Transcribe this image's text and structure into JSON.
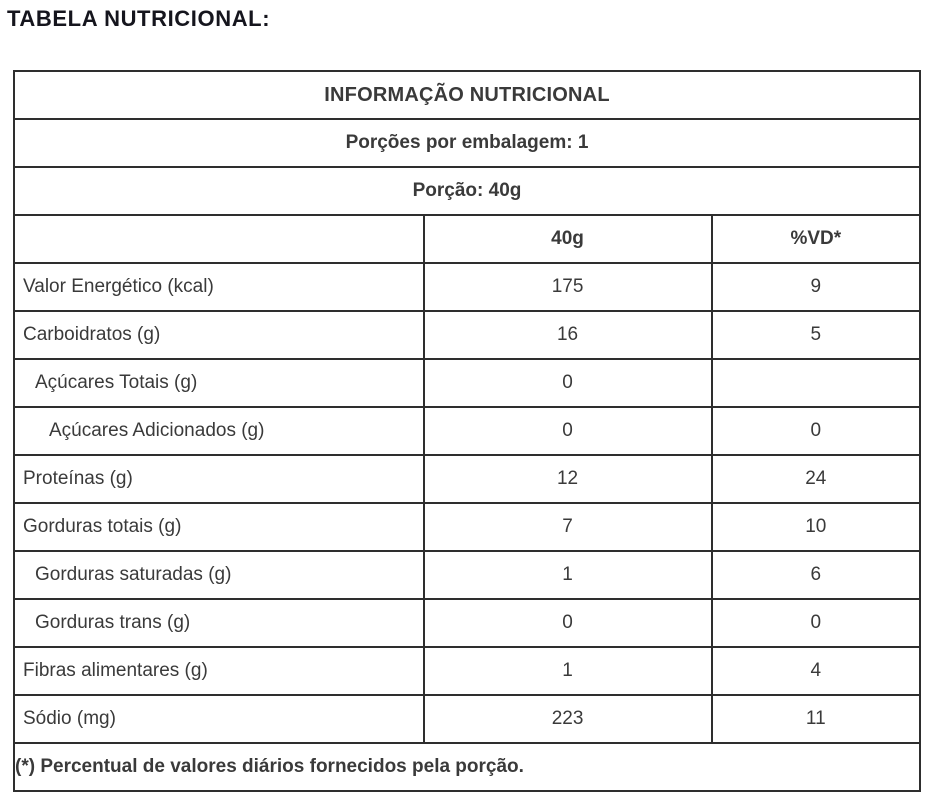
{
  "page_title": "TABELA NUTRICIONAL:",
  "table": {
    "title": "INFORMAÇÃO NUTRICIONAL",
    "servings_line": "Porções por embalagem: 1",
    "portion_line": "Porção: 40g",
    "columns": {
      "label": "",
      "amount": "40g",
      "dv": "%VD*"
    },
    "rows": [
      {
        "label": "Valor Energético (kcal)",
        "amount": "175",
        "dv": "9",
        "indent": 0
      },
      {
        "label": "Carboidratos (g)",
        "amount": "16",
        "dv": "5",
        "indent": 0
      },
      {
        "label": "Açúcares Totais (g)",
        "amount": "0",
        "dv": "",
        "indent": 1
      },
      {
        "label": "Açúcares Adicionados (g)",
        "amount": "0",
        "dv": "0",
        "indent": 2
      },
      {
        "label": "Proteínas (g)",
        "amount": "12",
        "dv": "24",
        "indent": 0
      },
      {
        "label": "Gorduras totais (g)",
        "amount": "7",
        "dv": "10",
        "indent": 0
      },
      {
        "label": "Gorduras saturadas (g)",
        "amount": "1",
        "dv": "6",
        "indent": 1
      },
      {
        "label": "Gorduras trans (g)",
        "amount": "0",
        "dv": "0",
        "indent": 1
      },
      {
        "label": "Fibras alimentares (g)",
        "amount": "1",
        "dv": "4",
        "indent": 0
      },
      {
        "label": "Sódio (mg)",
        "amount": "223",
        "dv": "11",
        "indent": 0
      }
    ],
    "footnote": "(*) Percentual de valores diários fornecidos pela porção.",
    "colors": {
      "border": "#2e2e2e",
      "heading_text": "#0f0f0f",
      "body_text": "#3a3a3a",
      "background": "#ffffff"
    }
  }
}
